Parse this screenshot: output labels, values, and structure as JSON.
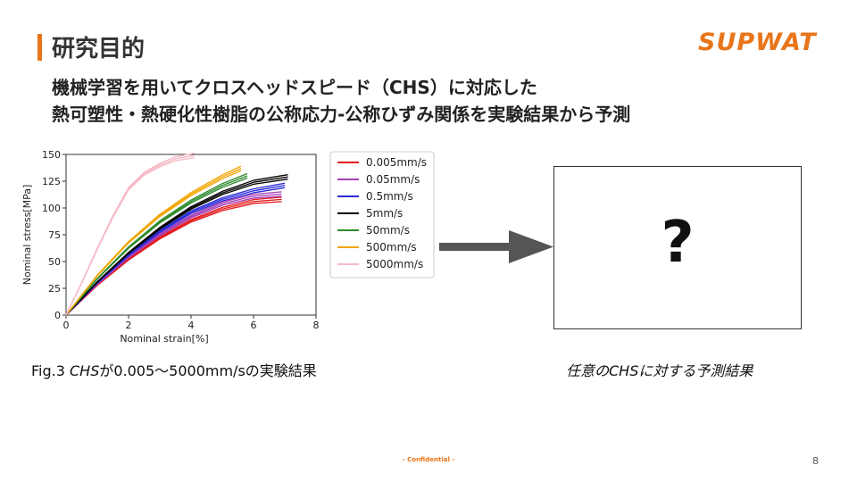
{
  "header": {
    "title": "研究目的",
    "logo": "SUPWAT",
    "subtitle_line1": "機械学習を用いてクロスヘッドスピード（CHS）に対応した",
    "subtitle_line2": "熱可塑性・熱硬化性樹脂の公称応力-公称ひずみ関係を実験結果から予測"
  },
  "chart_data": {
    "type": "line",
    "xlabel": "Nominal strain[%]",
    "ylabel": "Nominal stress[MPa]",
    "xlim": [
      0,
      8
    ],
    "ylim": [
      0,
      150
    ],
    "xticks": [
      0,
      2,
      4,
      6,
      8
    ],
    "yticks": [
      0,
      25,
      50,
      75,
      100,
      125,
      150
    ],
    "legend_position": "right-outside",
    "series": [
      {
        "name": "0.005mm/s",
        "color": "#e41a1c",
        "x": [
          0,
          1,
          2,
          3,
          4,
          5,
          6,
          6.9
        ],
        "y": [
          0,
          28,
          52,
          72,
          88,
          99,
          106,
          108
        ]
      },
      {
        "name": "0.05mm/s",
        "color": "#a63fb5",
        "x": [
          0,
          1,
          2,
          3,
          4,
          5,
          6,
          6.9
        ],
        "y": [
          0,
          29,
          54,
          75,
          92,
          104,
          111,
          113
        ]
      },
      {
        "name": "0.5mm/s",
        "color": "#2b2bd9",
        "x": [
          0,
          1,
          2,
          3,
          4,
          5,
          6,
          7.0
        ],
        "y": [
          0,
          30,
          56,
          78,
          96,
          108,
          116,
          121
        ]
      },
      {
        "name": "5mm/s",
        "color": "#000000",
        "x": [
          0,
          1,
          2,
          3,
          4,
          5,
          6,
          7.1
        ],
        "y": [
          0,
          31,
          58,
          81,
          100,
          114,
          124,
          129
        ]
      },
      {
        "name": "50mm/s",
        "color": "#2e8b2e",
        "x": [
          0,
          1,
          2,
          3,
          4,
          5,
          5.8
        ],
        "y": [
          0,
          34,
          63,
          87,
          106,
          121,
          130
        ]
      },
      {
        "name": "500mm/s",
        "color": "#f0a500",
        "x": [
          0,
          1,
          2,
          3,
          4,
          5,
          5.6
        ],
        "y": [
          0,
          37,
          68,
          93,
          113,
          129,
          137
        ]
      },
      {
        "name": "5000mm/s",
        "color": "#f7b8c4",
        "x": [
          0,
          0.5,
          1,
          1.5,
          2,
          2.5,
          3,
          3.5,
          4.1
        ],
        "y": [
          0,
          30,
          62,
          92,
          118,
          132,
          140,
          146,
          149
        ]
      }
    ]
  },
  "captions": {
    "left_prefix": "Fig.3 ",
    "left_italic": "CHS",
    "left_suffix": "が0.005〜5000mm/sの実験結果",
    "right": "任意のCHSに対する予測結果"
  },
  "prediction_box": {
    "symbol": "?"
  },
  "footer": {
    "confidential": "- Confidential -",
    "page": "8"
  }
}
